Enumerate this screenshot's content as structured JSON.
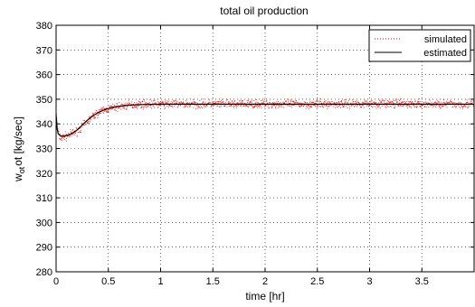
{
  "chart_data": {
    "type": "line",
    "title": "total oil production",
    "xlabel": "time [hr]",
    "ylabel_main": "w",
    "ylabel_sub": "ot",
    "ylabel_rest": "ot [kg/sec]",
    "xlim": [
      0,
      4
    ],
    "ylim": [
      280,
      380
    ],
    "xticks": [
      0,
      0.5,
      1,
      1.5,
      2,
      2.5,
      3,
      3.5
    ],
    "xtick_labels": [
      "0",
      "0.5",
      "1",
      "1.5",
      "2",
      "2.5",
      "3",
      "3.5"
    ],
    "yticks": [
      280,
      290,
      300,
      310,
      320,
      330,
      340,
      350,
      360,
      370,
      380
    ],
    "ytick_labels": [
      "280",
      "290",
      "300",
      "310",
      "320",
      "330",
      "340",
      "350",
      "360",
      "370",
      "380"
    ],
    "grid": true,
    "legend_position": "top-right",
    "series": [
      {
        "name": "simulated",
        "style": "dotted",
        "color": "#ff0000",
        "x": [
          0,
          0.02,
          0.05,
          0.08,
          0.1,
          0.15,
          0.2,
          0.25,
          0.3,
          0.35,
          0.4,
          0.45,
          0.5,
          0.6,
          0.7,
          0.8,
          1.0,
          1.2,
          1.5,
          2.0,
          2.5,
          3.0,
          3.5,
          4.0
        ],
        "values": [
          343,
          336,
          334,
          335,
          335,
          336,
          337,
          339,
          341,
          343,
          344.5,
          345.5,
          346,
          347,
          347.5,
          348,
          348,
          348,
          348,
          348,
          348,
          348.2,
          348,
          348
        ]
      },
      {
        "name": "estimated",
        "style": "solid",
        "color": "#000000",
        "x": [
          0,
          0.01,
          0.02,
          0.04,
          0.06,
          0.08,
          0.1,
          0.15,
          0.2,
          0.25,
          0.3,
          0.35,
          0.4,
          0.45,
          0.5,
          0.55,
          0.6,
          0.7,
          0.8,
          1.0,
          1.2,
          1.5,
          2.0,
          2.5,
          3.0,
          3.5,
          4.0
        ],
        "values": [
          344,
          338,
          336,
          335.2,
          335,
          335,
          335.3,
          336,
          337.5,
          339.5,
          341.5,
          343.2,
          344.5,
          345.5,
          346.2,
          346.8,
          347.2,
          347.6,
          347.8,
          348,
          348,
          348,
          348,
          348,
          348,
          348,
          348
        ]
      }
    ]
  },
  "colors": {
    "simulated": "#ff0000",
    "estimated": "#000000",
    "axes": "#000000",
    "grid": "#000000",
    "background": "#ffffff"
  }
}
